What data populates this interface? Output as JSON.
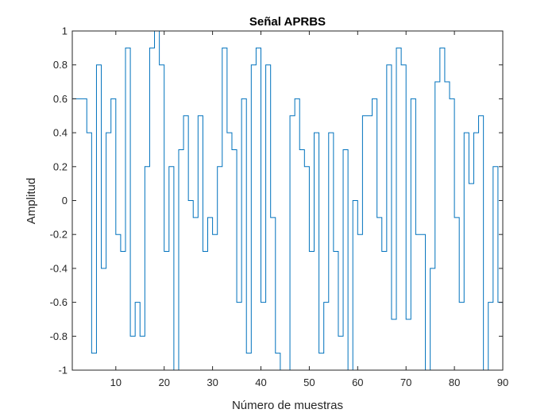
{
  "window": {
    "background": "#ffffff"
  },
  "chart_data": {
    "type": "line",
    "style": "stairs",
    "title": "Señal APRBS",
    "xlabel": "Número de muestras",
    "ylabel": "Amplitud",
    "xlim": [
      1,
      90
    ],
    "ylim": [
      -1,
      1
    ],
    "x_ticks": [
      10,
      20,
      30,
      40,
      50,
      60,
      70,
      80,
      90
    ],
    "x_tick_labels": [
      "10",
      "20",
      "30",
      "40",
      "50",
      "60",
      "70",
      "80",
      "90"
    ],
    "y_ticks": [
      -1,
      -0.8,
      -0.6,
      -0.4,
      -0.2,
      0,
      0.2,
      0.4,
      0.6,
      0.8,
      1
    ],
    "y_tick_labels": [
      "-1",
      "-0.8",
      "-0.6",
      "-0.4",
      "-0.2",
      "0",
      "0.2",
      "0.4",
      "0.6",
      "0.8",
      "1"
    ],
    "grid": false,
    "line_color": "#0072BD",
    "series": [
      {
        "x": [
          1,
          2,
          3,
          4,
          5,
          6,
          7,
          8,
          9,
          10,
          11,
          12,
          13,
          14,
          15,
          16,
          17,
          18,
          19,
          20,
          21,
          22,
          23,
          24,
          25,
          26,
          27,
          28,
          29,
          30,
          31,
          32,
          33,
          34,
          35,
          36,
          37,
          38,
          39,
          40,
          41,
          42,
          43,
          44,
          45,
          46,
          47,
          48,
          49,
          50,
          51,
          52,
          53,
          54,
          55,
          56,
          57,
          58,
          59,
          60,
          61,
          62,
          63,
          64,
          65,
          66,
          67,
          68,
          69,
          70,
          71,
          72,
          73,
          74,
          75,
          76,
          77,
          78,
          79,
          80,
          81,
          82,
          83,
          84,
          85,
          86,
          87,
          88,
          89,
          90
        ],
        "values": [
          0.6,
          0.6,
          0.6,
          0.4,
          -0.9,
          0.8,
          -0.4,
          0.4,
          0.6,
          -0.2,
          -0.3,
          0.9,
          -0.8,
          -0.6,
          -0.8,
          0.2,
          0.9,
          1,
          0.8,
          -0.3,
          0.2,
          -1,
          0.3,
          0.5,
          0,
          -0.1,
          0.5,
          -0.3,
          -0.1,
          -0.2,
          0.2,
          0.9,
          0.4,
          0.3,
          -0.6,
          0.6,
          -0.9,
          0.8,
          0.9,
          -0.6,
          0.8,
          -0.1,
          -0.9,
          -1,
          -1.1,
          0.5,
          0.6,
          0.3,
          0.2,
          -0.3,
          0.4,
          -0.9,
          -0.6,
          0.4,
          -0.3,
          -0.8,
          0.3,
          -1,
          0,
          -0.2,
          0.5,
          0.5,
          0.6,
          -0.1,
          -0.3,
          0.8,
          -0.7,
          0.9,
          0.8,
          -0.7,
          0.6,
          -0.2,
          -0.2,
          -1,
          -0.4,
          0.7,
          0.9,
          0.7,
          0.6,
          -0.1,
          -0.6,
          0.4,
          0.1,
          0.4,
          0.5,
          -1.1,
          -0.6,
          0.2,
          -0.6,
          -0.5
        ]
      }
    ]
  }
}
